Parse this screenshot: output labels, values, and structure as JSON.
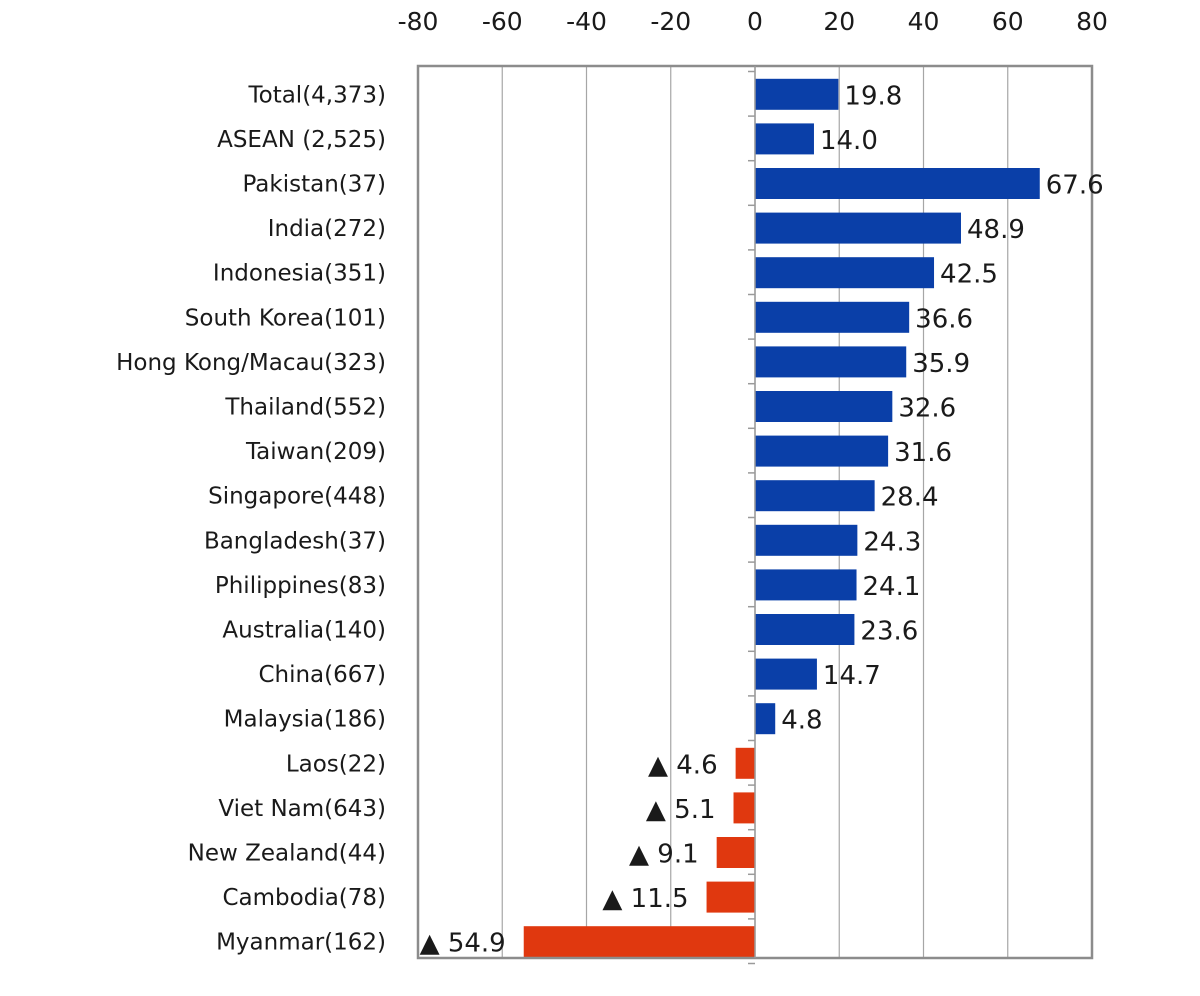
{
  "chart_data": {
    "type": "bar",
    "orientation": "horizontal",
    "xlim": [
      -80,
      80
    ],
    "x_ticks": [
      "-80",
      "-60",
      "-40",
      "-20",
      "0",
      "20",
      "40",
      "60",
      "80"
    ],
    "x_tick_values": [
      -80,
      -60,
      -40,
      -20,
      0,
      20,
      40,
      60,
      80
    ],
    "x_axis_position": "top",
    "grid": true,
    "negative_marker": "▲",
    "colors": {
      "positive": "#0a3fa8",
      "negative": "#e0380f"
    },
    "categories": [
      "Total(4,373)",
      "ASEAN (2,525)",
      "Pakistan(37)",
      "India(272)",
      "Indonesia(351)",
      "South Korea(101)",
      "Hong Kong/Macau(323)",
      "Thailand(552)",
      "Taiwan(209)",
      "Singapore(448)",
      "Bangladesh(37)",
      "Philippines(83)",
      "Australia(140)",
      "China(667)",
      "Malaysia(186)",
      "Laos(22)",
      "Viet Nam(643)",
      "New Zealand(44)",
      "Cambodia(78)",
      "Myanmar(162)"
    ],
    "values": [
      19.8,
      14.0,
      67.6,
      48.9,
      42.5,
      36.6,
      35.9,
      32.6,
      31.6,
      28.4,
      24.3,
      24.1,
      23.6,
      14.7,
      4.8,
      -4.6,
      -5.1,
      -9.1,
      -11.5,
      -54.9
    ],
    "data_labels": [
      "19.8",
      "14.0",
      "67.6",
      "48.9",
      "42.5",
      "36.6",
      "35.9",
      "32.6",
      "31.6",
      "28.4",
      "24.3",
      "24.1",
      "23.6",
      "14.7",
      "4.8",
      "▲ 4.6",
      "▲ 5.1",
      "▲ 9.1",
      "▲ 11.5",
      "▲ 54.9"
    ]
  }
}
